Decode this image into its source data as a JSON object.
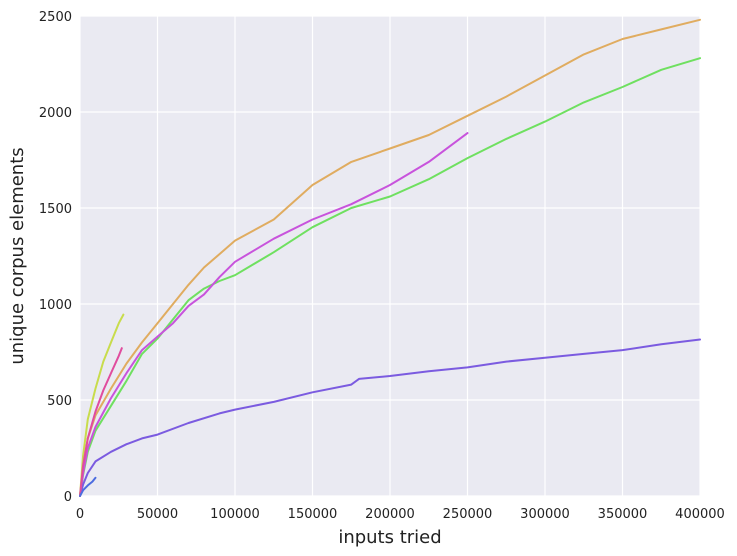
{
  "chart_data": {
    "type": "line",
    "title": "",
    "xlabel": "inputs tried",
    "ylabel": "unique corpus elements",
    "xlim": [
      0,
      400000
    ],
    "ylim": [
      0,
      2500
    ],
    "xticks": [
      0,
      50000,
      100000,
      150000,
      200000,
      250000,
      300000,
      350000,
      400000
    ],
    "xtick_labels": [
      "0",
      "50000",
      "100000",
      "150000",
      "200000",
      "250000",
      "300000",
      "350000",
      "400000"
    ],
    "yticks": [
      0,
      500,
      1000,
      1500,
      2000,
      2500
    ],
    "ytick_labels": [
      "0",
      "500",
      "1000",
      "1500",
      "2000",
      "2500"
    ],
    "grid": true,
    "legend": "none",
    "background_color": "#EAEAF2",
    "grid_color": "#ffffff",
    "series": [
      {
        "color": "#E0AC60",
        "x": [
          0,
          2000,
          5000,
          10000,
          20000,
          30000,
          40000,
          50000,
          60000,
          70000,
          80000,
          90000,
          100000,
          125000,
          150000,
          175000,
          200000,
          225000,
          250000,
          275000,
          300000,
          325000,
          350000,
          375000,
          400000
        ],
        "y": [
          0,
          150,
          300,
          420,
          560,
          690,
          800,
          900,
          1000,
          1100,
          1190,
          1260,
          1330,
          1440,
          1620,
          1740,
          1810,
          1880,
          1980,
          2080,
          2190,
          2300,
          2380,
          2430,
          2480
        ]
      },
      {
        "color": "#6FE060",
        "x": [
          0,
          2000,
          5000,
          10000,
          20000,
          30000,
          40000,
          50000,
          60000,
          70000,
          80000,
          90000,
          100000,
          125000,
          150000,
          175000,
          200000,
          225000,
          250000,
          275000,
          300000,
          325000,
          350000,
          375000,
          400000
        ],
        "y": [
          0,
          110,
          230,
          340,
          470,
          600,
          740,
          820,
          920,
          1020,
          1080,
          1120,
          1150,
          1270,
          1400,
          1500,
          1560,
          1650,
          1760,
          1860,
          1950,
          2050,
          2130,
          2220,
          2280
        ]
      },
      {
        "color": "#C853DC",
        "x": [
          0,
          2000,
          5000,
          10000,
          20000,
          30000,
          40000,
          50000,
          60000,
          70000,
          80000,
          90000,
          100000,
          125000,
          150000,
          175000,
          200000,
          225000,
          250000
        ],
        "y": [
          0,
          120,
          250,
          360,
          510,
          640,
          760,
          830,
          900,
          990,
          1050,
          1140,
          1220,
          1340,
          1440,
          1520,
          1620,
          1740,
          1890
        ]
      },
      {
        "color": "#7B5BE0",
        "x": [
          0,
          2000,
          5000,
          10000,
          20000,
          30000,
          40000,
          50000,
          70000,
          90000,
          100000,
          125000,
          150000,
          175000,
          180000,
          200000,
          225000,
          250000,
          275000,
          300000,
          325000,
          350000,
          375000,
          400000
        ],
        "y": [
          0,
          60,
          120,
          180,
          230,
          270,
          300,
          320,
          380,
          430,
          450,
          490,
          540,
          580,
          610,
          625,
          650,
          670,
          700,
          720,
          740,
          760,
          790,
          815
        ]
      },
      {
        "color": "#C8DC4C",
        "x": [
          0,
          2000,
          5000,
          10000,
          15000,
          20000,
          25000,
          28000
        ],
        "y": [
          0,
          210,
          400,
          560,
          700,
          800,
          900,
          945
        ]
      },
      {
        "color": "#E04C9E",
        "x": [
          0,
          2000,
          5000,
          10000,
          15000,
          20000,
          25000,
          27000
        ],
        "y": [
          0,
          160,
          300,
          440,
          550,
          640,
          730,
          770
        ]
      },
      {
        "color": "#4C6CE0",
        "x": [
          0,
          2000,
          5000,
          8000,
          10000
        ],
        "y": [
          0,
          30,
          55,
          75,
          95
        ]
      }
    ]
  }
}
